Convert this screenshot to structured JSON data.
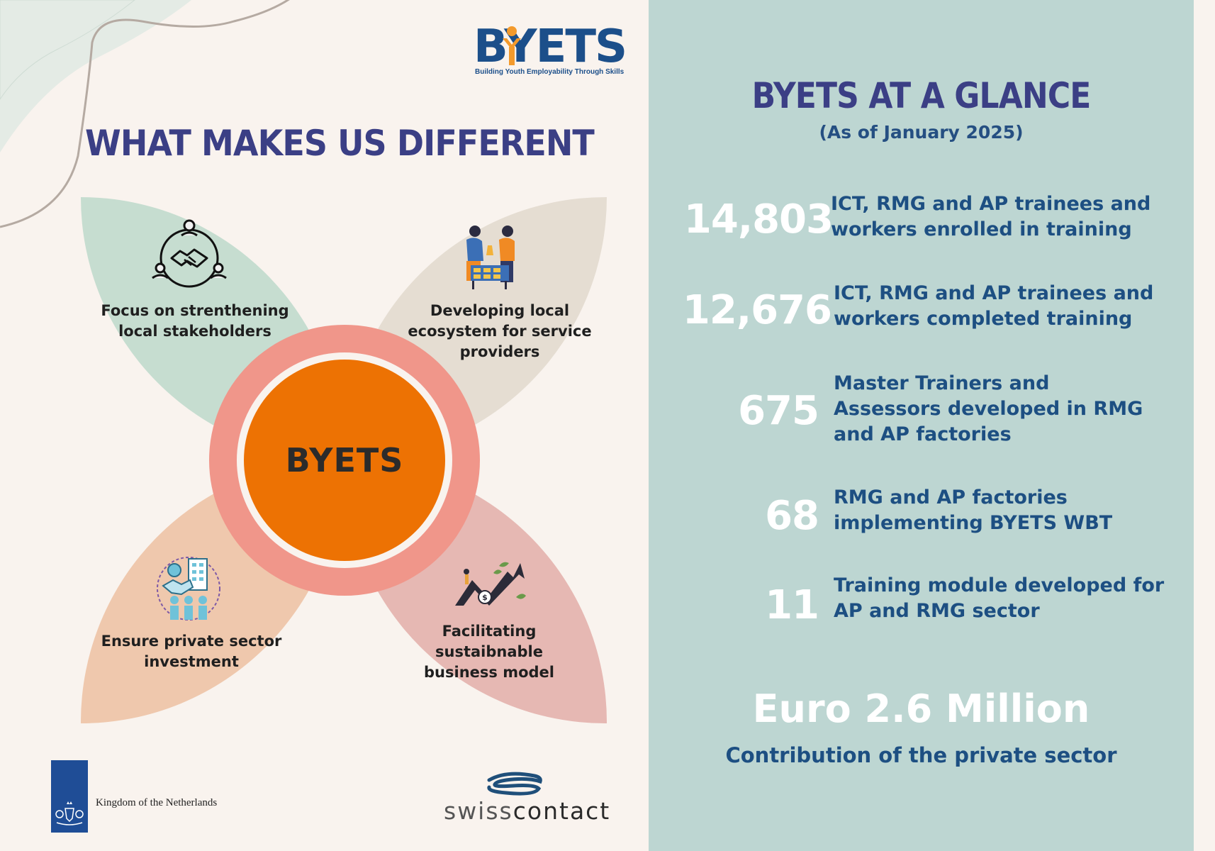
{
  "logo": {
    "wordmark": "BYETS",
    "tagline": "Building Youth Employability Through Skills"
  },
  "left": {
    "title": "WHAT MAKES US DIFFERENT",
    "center_label": "BYETS",
    "petals": [
      {
        "label": "Focus on strenthening local stakeholders",
        "icon": "handshake-network-icon"
      },
      {
        "label": "Developing local ecosystem for service providers",
        "icon": "people-exchange-icon"
      },
      {
        "label": "Ensure private sector investment",
        "icon": "investment-partnership-icon"
      },
      {
        "label": "Facilitating sustaibnable business model",
        "icon": "growth-arrow-icon"
      }
    ]
  },
  "right": {
    "title": "BYETS AT A GLANCE",
    "subtitle": "(As of January 2025)",
    "stats": [
      {
        "value": "14,803",
        "description": "ICT, RMG and AP trainees and workers enrolled in training"
      },
      {
        "value": "12,676",
        "description": "ICT, RMG and AP trainees and workers completed training"
      },
      {
        "value": "675",
        "description": "Master Trainers and Assessors developed in RMG and AP factories"
      },
      {
        "value": "68",
        "description": "RMG and AP factories implementing BYETS WBT"
      },
      {
        "value": "11",
        "description": "Training module developed for AP and RMG sector"
      }
    ],
    "highlight_value": "Euro 2.6  Million",
    "highlight_caption": "Contribution of the private sector"
  },
  "partners": {
    "netherlands": "Kingdom of the Netherlands",
    "swisscontact_light": "swiss",
    "swisscontact_bold": "contact"
  },
  "colors": {
    "navy": "#3b3f85",
    "blue": "#1d4f82",
    "orange": "#ed7203",
    "teal_panel": "#bdd6d2",
    "cream": "#f9f3ee"
  }
}
